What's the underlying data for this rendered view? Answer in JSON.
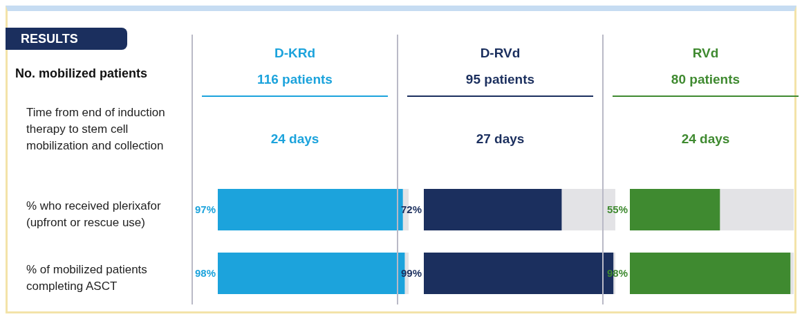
{
  "chart_data": [
    {
      "type": "bar",
      "orientation": "horizontal",
      "title": "D-KRd",
      "subtitle": "116 patients",
      "categories": [
        "% who received plerixafor (upfront or rescue use)",
        "% of mobilized patients completing ASCT"
      ],
      "values": [
        97,
        98
      ],
      "value_labels": [
        "97%",
        "98%"
      ],
      "color": "#1ca3dc",
      "tick_labels": "y",
      "annotations": [
        "RESULTS",
        "No. mobilized patients",
        "Time from end of induction therapy to stem cell mobilization and collection",
        "24 days"
      ]
    },
    {
      "type": "bar",
      "orientation": "horizontal",
      "title": "D-RVd",
      "subtitle": "95 patients",
      "categories": [
        null,
        null
      ],
      "values": [
        72,
        99
      ],
      "value_labels": [
        "72%",
        "99%"
      ],
      "color": "#1b2f5e",
      "tick_labels": false,
      "annotations": [
        "27 days"
      ]
    },
    {
      "type": "bar",
      "orientation": "horizontal",
      "title": "RVd",
      "subtitle": "80 patients",
      "categories": [
        null,
        null
      ],
      "values": [
        55,
        98
      ],
      "value_labels": [
        "55%",
        "98%"
      ],
      "color": "#3f8a30",
      "tick_labels": false,
      "annotations": [
        "24 days"
      ]
    }
  ]
}
